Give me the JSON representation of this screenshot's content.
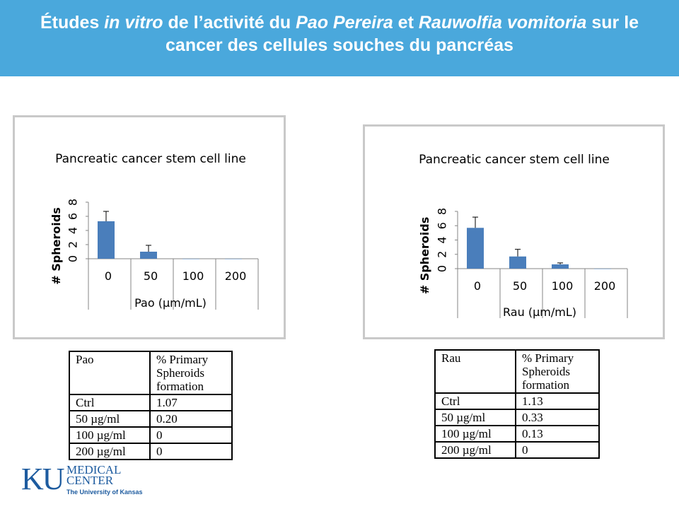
{
  "slide": {
    "title_parts": [
      {
        "text": "Études ",
        "italic": false
      },
      {
        "text": "in vitro",
        "italic": true
      },
      {
        "text": " de l’activité du ",
        "italic": false
      },
      {
        "text": "Pao Pereira",
        "italic": true
      },
      {
        "text": " et ",
        "italic": false
      },
      {
        "text": "Rauwolfia vomitoria",
        "italic": true
      },
      {
        "text": " sur le",
        "italic": false
      }
    ],
    "title_line2": "cancer des cellules souches du pancréas",
    "banner_color": "#4aa8dc"
  },
  "chart_data": [
    {
      "type": "bar",
      "title": "Pancreatic cancer stem cell line",
      "categories": [
        "0",
        "50",
        "100",
        "200"
      ],
      "series": [
        {
          "values": [
            5.3,
            1.0,
            0,
            0
          ],
          "error": [
            1.4,
            0.9,
            0,
            0
          ]
        }
      ],
      "xlabel": "Pao (μm/mL)",
      "ylabel": "# Spheroids",
      "ylim": [
        0,
        8
      ],
      "yticks": [
        "0",
        "2",
        "4",
        "6",
        "8"
      ],
      "grid": false,
      "bar_color": "#4a7ebb"
    },
    {
      "type": "bar",
      "title": "Pancreatic cancer stem cell line",
      "categories": [
        "0",
        "50",
        "100",
        "200"
      ],
      "series": [
        {
          "values": [
            5.7,
            1.7,
            0.6,
            0
          ],
          "error": [
            1.5,
            1.0,
            0.2,
            0
          ]
        }
      ],
      "xlabel": "Rau (μm/mL)",
      "ylabel": "# Spheroids",
      "ylim": [
        0,
        8
      ],
      "yticks": [
        "0",
        "2",
        "4",
        "6",
        "8"
      ],
      "grid": false,
      "bar_color": "#4a7ebb"
    }
  ],
  "tables": [
    {
      "headers": [
        "Pao",
        "% Primary Spheroids formation"
      ],
      "rows": [
        [
          "Ctrl",
          "1.07"
        ],
        [
          "50 µg/ml",
          "0.20"
        ],
        [
          "100 µg/ml",
          "0"
        ],
        [
          "200 µg/ml",
          "0"
        ]
      ]
    },
    {
      "headers": [
        "Rau",
        "% Primary Spheroids formation"
      ],
      "rows": [
        [
          "Ctrl",
          "1.13"
        ],
        [
          "50 µg/ml",
          "0.33"
        ],
        [
          "100 µg/ml",
          "0.13"
        ],
        [
          "200 µg/ml",
          "0"
        ]
      ]
    }
  ],
  "logo": {
    "mark": "KU",
    "line1": "MEDICAL",
    "line2": "CENTER",
    "line3": "The University of Kansas"
  }
}
